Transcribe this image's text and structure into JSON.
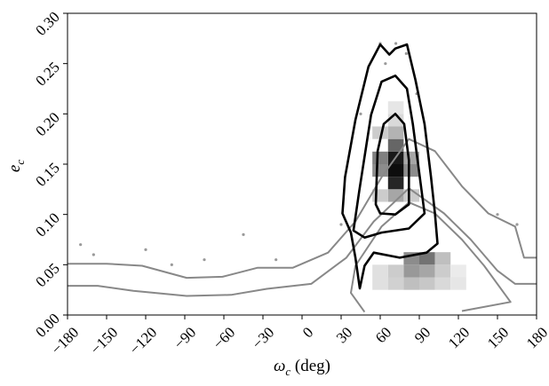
{
  "chart_data": {
    "type": "density",
    "xlabel": {
      "symbol": "ω",
      "sub": "c",
      "unit": " (deg)"
    },
    "ylabel": {
      "symbol": "e",
      "sub": "c"
    },
    "xlim": [
      -180,
      180
    ],
    "ylim": [
      0,
      0.3
    ],
    "xticks": [
      {
        "value": -180,
        "label": "−180"
      },
      {
        "value": -150,
        "label": "−150"
      },
      {
        "value": -120,
        "label": "−120"
      },
      {
        "value": -90,
        "label": "−90"
      },
      {
        "value": -60,
        "label": "−60"
      },
      {
        "value": -30,
        "label": "−30"
      },
      0,
      30,
      60,
      90,
      120,
      150,
      180
    ],
    "yticks": [
      {
        "value": 0,
        "label": "0.00"
      },
      {
        "value": 0.05,
        "label": "0.05"
      },
      {
        "value": 0.1,
        "label": "0.10"
      },
      {
        "value": 0.15,
        "label": "0.15"
      },
      {
        "value": 0.2,
        "label": "0.20"
      },
      {
        "value": 0.25,
        "label": "0.25"
      },
      {
        "value": 0.3,
        "label": "0.30"
      }
    ],
    "heatmap": {
      "cell_width": 12,
      "cell_height": 0.0125,
      "cells": [
        {
          "x": 66,
          "y": 0.125,
          "density": 0.85
        },
        {
          "x": 66,
          "y": 0.1375,
          "density": 0.95
        },
        {
          "x": 66,
          "y": 0.15,
          "density": 0.9
        },
        {
          "x": 66,
          "y": 0.1625,
          "density": 0.6
        },
        {
          "x": 54,
          "y": 0.1375,
          "density": 0.45
        },
        {
          "x": 54,
          "y": 0.15,
          "density": 0.5
        },
        {
          "x": 78,
          "y": 0.1375,
          "density": 0.45
        },
        {
          "x": 78,
          "y": 0.15,
          "density": 0.35
        },
        {
          "x": 66,
          "y": 0.1125,
          "density": 0.35
        },
        {
          "x": 66,
          "y": 0.175,
          "density": 0.3
        },
        {
          "x": 54,
          "y": 0.175,
          "density": 0.2
        },
        {
          "x": 54,
          "y": 0.1125,
          "density": 0.2
        },
        {
          "x": 78,
          "y": 0.1125,
          "density": 0.2
        },
        {
          "x": 66,
          "y": 0.1875,
          "density": 0.15
        },
        {
          "x": 66,
          "y": 0.2,
          "density": 0.1
        },
        {
          "x": 78,
          "y": 0.05,
          "density": 0.45
        },
        {
          "x": 90,
          "y": 0.05,
          "density": 0.55
        },
        {
          "x": 78,
          "y": 0.0375,
          "density": 0.4
        },
        {
          "x": 90,
          "y": 0.0375,
          "density": 0.35
        },
        {
          "x": 102,
          "y": 0.05,
          "density": 0.25
        },
        {
          "x": 66,
          "y": 0.0375,
          "density": 0.2
        },
        {
          "x": 54,
          "y": 0.025,
          "density": 0.12
        },
        {
          "x": 66,
          "y": 0.025,
          "density": 0.18
        },
        {
          "x": 78,
          "y": 0.025,
          "density": 0.25
        },
        {
          "x": 90,
          "y": 0.025,
          "density": 0.22
        },
        {
          "x": 102,
          "y": 0.025,
          "density": 0.15
        },
        {
          "x": 114,
          "y": 0.025,
          "density": 0.1
        },
        {
          "x": 102,
          "y": 0.0375,
          "density": 0.2
        },
        {
          "x": 54,
          "y": 0.0375,
          "density": 0.12
        },
        {
          "x": 114,
          "y": 0.0375,
          "density": 0.08
        }
      ]
    },
    "points": {
      "color": "#555",
      "x": [
        -170,
        -160,
        -120,
        -100,
        -75,
        -45,
        -20,
        30,
        45,
        60,
        64,
        72,
        80,
        88,
        150,
        165
      ],
      "y": [
        0.07,
        0.06,
        0.065,
        0.05,
        0.055,
        0.08,
        0.055,
        0.09,
        0.2,
        0.27,
        0.25,
        0.27,
        0.26,
        0.22,
        0.1,
        0.09
      ]
    },
    "contours": [
      {
        "color": "#888888",
        "closed": false,
        "x": [
          -180,
          -150,
          -122.7,
          -88.6,
          -61,
          -34,
          -7,
          20,
          41,
          61,
          82,
          102,
          122.7,
          143,
          163.6,
          170.4,
          180
        ],
        "y": [
          0.051,
          0.051,
          0.049,
          0.037,
          0.038,
          0.047,
          0.047,
          0.062,
          0.093,
          0.137,
          0.175,
          0.163,
          0.128,
          0.101,
          0.088,
          0.057,
          0.057
        ]
      },
      {
        "color": "#888888",
        "closed": false,
        "x": [
          -180,
          -156.8,
          -129.5,
          -88.6,
          -54.5,
          -27,
          7,
          34,
          55,
          82,
          109,
          129.5,
          150,
          163.6,
          180
        ],
        "y": [
          0.029,
          0.029,
          0.024,
          0.019,
          0.02,
          0.026,
          0.031,
          0.057,
          0.093,
          0.126,
          0.101,
          0.075,
          0.044,
          0.031,
          0.031
        ]
      },
      {
        "color": "#888888",
        "closed": false,
        "x": [
          48,
          37.5,
          41,
          61,
          82,
          102,
          122.7,
          139.8,
          160,
          122.7
        ],
        "y": [
          0.003,
          0.022,
          0.049,
          0.088,
          0.112,
          0.101,
          0.075,
          0.049,
          0.013,
          0.004
        ]
      },
      {
        "color": "#000000",
        "closed": true,
        "x": [
          44.3,
          41,
          37.5,
          31,
          33,
          41,
          51,
          60,
          67,
          71.6,
          80.5,
          87,
          94,
          99,
          102,
          104,
          95.5,
          75,
          55,
          48
        ],
        "y": [
          0.0265,
          0.057,
          0.082,
          0.101,
          0.137,
          0.194,
          0.247,
          0.269,
          0.259,
          0.265,
          0.269,
          0.234,
          0.19,
          0.137,
          0.101,
          0.071,
          0.062,
          0.057,
          0.062,
          0.049
        ]
      },
      {
        "color": "#000000",
        "closed": true,
        "x": [
          39.5,
          44,
          53,
          61,
          71.6,
          80.5,
          85,
          90,
          94,
          82,
          61,
          48
        ],
        "y": [
          0.084,
          0.124,
          0.199,
          0.232,
          0.238,
          0.225,
          0.19,
          0.141,
          0.101,
          0.086,
          0.082,
          0.077
        ]
      },
      {
        "color": "#000000",
        "closed": true,
        "x": [
          56.6,
          58,
          62.7,
          71.6,
          78.4,
          82,
          82,
          71.6,
          60
        ],
        "y": [
          0.11,
          0.163,
          0.19,
          0.2,
          0.19,
          0.154,
          0.11,
          0.1,
          0.101
        ]
      }
    ]
  }
}
